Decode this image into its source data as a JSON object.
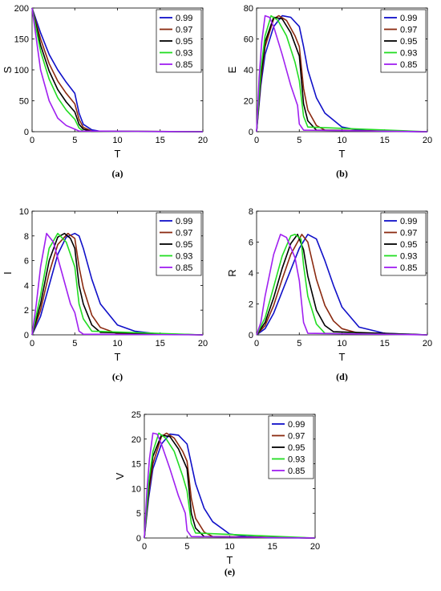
{
  "chart_data": [
    {
      "type": "line",
      "caption": "(a)",
      "xlabel": "T",
      "ylabel": "S",
      "xlim": [
        0,
        20
      ],
      "ylim": [
        0,
        200
      ],
      "xticks": [
        "0",
        "5",
        "10",
        "15",
        "20"
      ],
      "yticks": [
        "0",
        "50",
        "100",
        "150",
        "200"
      ],
      "legend_position": "top-right",
      "series": [
        {
          "name": "0.99",
          "color": "#1010c8",
          "x": [
            0,
            1,
            2,
            3,
            4,
            5,
            5.5,
            6,
            7,
            8,
            20
          ],
          "y": [
            200,
            160,
            125,
            100,
            80,
            62,
            30,
            12,
            3,
            0.5,
            0
          ]
        },
        {
          "name": "0.97",
          "color": "#8b2a10",
          "x": [
            0,
            1,
            2,
            3,
            4,
            5,
            5.5,
            6,
            7,
            20
          ],
          "y": [
            200,
            150,
            110,
            82,
            62,
            45,
            20,
            7,
            1,
            0
          ]
        },
        {
          "name": "0.95",
          "color": "#000000",
          "x": [
            0,
            1,
            2,
            3,
            4,
            5,
            5.5,
            6,
            7,
            20
          ],
          "y": [
            200,
            140,
            98,
            68,
            48,
            32,
            12,
            4,
            0.5,
            0
          ]
        },
        {
          "name": "0.93",
          "color": "#22dd22",
          "x": [
            0,
            1,
            2,
            3,
            4,
            5,
            5.5,
            6,
            20
          ],
          "y": [
            200,
            130,
            85,
            55,
            35,
            20,
            6,
            1,
            0
          ]
        },
        {
          "name": "0.85",
          "color": "#a020f0",
          "x": [
            0,
            1,
            2,
            3,
            4,
            5,
            5.5,
            20
          ],
          "y": [
            200,
            100,
            50,
            22,
            10,
            4,
            1,
            0
          ]
        }
      ]
    },
    {
      "type": "line",
      "caption": "(b)",
      "xlabel": "T",
      "ylabel": "E",
      "xlim": [
        0,
        20
      ],
      "ylim": [
        0,
        80
      ],
      "xticks": [
        "0",
        "5",
        "10",
        "15",
        "20"
      ],
      "yticks": [
        "0",
        "20",
        "40",
        "60",
        "80"
      ],
      "legend_position": "top-right",
      "series": [
        {
          "name": "0.99",
          "color": "#1010c8",
          "x": [
            0,
            0.5,
            1,
            2,
            3,
            4,
            5,
            5.5,
            6,
            7,
            8,
            10,
            12,
            15,
            20
          ],
          "y": [
            0,
            30,
            50,
            68,
            75,
            74,
            68,
            55,
            40,
            22,
            12,
            3,
            1,
            0.2,
            0
          ]
        },
        {
          "name": "0.97",
          "color": "#8b2a10",
          "x": [
            0,
            0.5,
            1,
            2,
            2.6,
            3.5,
            4.5,
            5,
            5.5,
            6,
            7,
            8,
            20
          ],
          "y": [
            0,
            33,
            55,
            73,
            75,
            72,
            62,
            55,
            28,
            14,
            4,
            1,
            0
          ]
        },
        {
          "name": "0.95",
          "color": "#000000",
          "x": [
            0,
            0.5,
            1,
            2,
            3,
            4,
            5,
            5.5,
            6,
            7,
            20
          ],
          "y": [
            0,
            36,
            58,
            74,
            73,
            64,
            49,
            18,
            7,
            1,
            0
          ]
        },
        {
          "name": "0.93",
          "color": "#22dd22",
          "x": [
            0,
            0.5,
            1,
            1.7,
            2.5,
            3.5,
            4.5,
            5,
            5.5,
            6,
            20
          ],
          "y": [
            0,
            40,
            62,
            75,
            72,
            62,
            45,
            33,
            10,
            3,
            0
          ]
        },
        {
          "name": "0.85",
          "color": "#a020f0",
          "x": [
            0,
            0.3,
            0.6,
            1,
            1.5,
            2,
            3,
            4,
            4.8,
            5,
            5.5,
            20
          ],
          "y": [
            0,
            35,
            58,
            75,
            74,
            68,
            50,
            30,
            17,
            5,
            1,
            0
          ]
        }
      ]
    },
    {
      "type": "line",
      "caption": "(c)",
      "xlabel": "T",
      "ylabel": "I",
      "xlim": [
        0,
        20
      ],
      "ylim": [
        0,
        10
      ],
      "xticks": [
        "0",
        "5",
        "10",
        "15",
        "20"
      ],
      "yticks": [
        "0",
        "2",
        "4",
        "6",
        "8",
        "10"
      ],
      "legend_position": "top-right",
      "series": [
        {
          "name": "0.99",
          "color": "#1010c8",
          "x": [
            0,
            1,
            2,
            3,
            4,
            5,
            5.5,
            6,
            7,
            8,
            10,
            12,
            15,
            20
          ],
          "y": [
            0,
            1.5,
            4,
            6.5,
            7.9,
            8.2,
            8,
            7,
            4.5,
            2.5,
            0.8,
            0.3,
            0.05,
            0
          ]
        },
        {
          "name": "0.97",
          "color": "#8b2a10",
          "x": [
            0,
            1,
            2,
            3,
            4.2,
            5,
            5.5,
            6,
            7,
            8,
            10,
            20
          ],
          "y": [
            0,
            2,
            5,
            7.3,
            8.2,
            7.8,
            5.5,
            3.8,
            1.6,
            0.6,
            0.1,
            0
          ]
        },
        {
          "name": "0.95",
          "color": "#000000",
          "x": [
            0,
            1,
            2,
            3,
            3.8,
            4.5,
            5,
            5.5,
            6,
            7,
            8,
            20
          ],
          "y": [
            0,
            2.5,
            6,
            7.9,
            8.2,
            7.8,
            7,
            4,
            2.5,
            0.8,
            0.2,
            0
          ]
        },
        {
          "name": "0.93",
          "color": "#22dd22",
          "x": [
            0,
            1,
            2,
            3,
            4,
            5,
            5.5,
            6,
            7,
            20
          ],
          "y": [
            0,
            3.2,
            7,
            8.2,
            7.5,
            5.5,
            2.5,
            1.3,
            0.3,
            0
          ]
        },
        {
          "name": "0.85",
          "color": "#a020f0",
          "x": [
            0,
            0.5,
            1,
            1.7,
            2.5,
            3.5,
            4.5,
            5,
            5.5,
            6,
            20
          ],
          "y": [
            0,
            2.5,
            5.5,
            8.2,
            7.5,
            5,
            2.5,
            1.8,
            0.3,
            0.05,
            0
          ]
        }
      ]
    },
    {
      "type": "line",
      "caption": "(d)",
      "xlabel": "T",
      "ylabel": "R",
      "xlim": [
        0,
        20
      ],
      "ylim": [
        0,
        8
      ],
      "xticks": [
        "0",
        "5",
        "10",
        "15",
        "20"
      ],
      "yticks": [
        "0",
        "2",
        "4",
        "6",
        "8"
      ],
      "legend_position": "top-right",
      "series": [
        {
          "name": "0.99",
          "color": "#1010c8",
          "x": [
            0,
            1,
            2,
            3,
            4,
            5,
            6,
            7,
            8,
            9,
            10,
            12,
            15,
            20
          ],
          "y": [
            0,
            0.4,
            1.4,
            2.8,
            4.2,
            5.6,
            6.5,
            6.2,
            4.8,
            3.2,
            1.8,
            0.5,
            0.1,
            0
          ]
        },
        {
          "name": "0.97",
          "color": "#8b2a10",
          "x": [
            0,
            1,
            2,
            3,
            4,
            5.3,
            6,
            7,
            8,
            9,
            10,
            12,
            20
          ],
          "y": [
            0,
            0.6,
            1.9,
            3.6,
            5.2,
            6.5,
            6,
            3.6,
            1.9,
            0.9,
            0.4,
            0.1,
            0
          ]
        },
        {
          "name": "0.95",
          "color": "#000000",
          "x": [
            0,
            1,
            2,
            3,
            4,
            4.8,
            5.5,
            6,
            7,
            8,
            9,
            20
          ],
          "y": [
            0,
            0.8,
            2.4,
            4.3,
            5.9,
            6.5,
            5.5,
            3.8,
            1.6,
            0.6,
            0.2,
            0
          ]
        },
        {
          "name": "0.93",
          "color": "#22dd22",
          "x": [
            0,
            1,
            2,
            3,
            4,
            4.5,
            5.2,
            5.5,
            6,
            7,
            8,
            20
          ],
          "y": [
            0,
            1.1,
            3.1,
            5.1,
            6.4,
            6.5,
            6.2,
            4.5,
            2.5,
            0.7,
            0.1,
            0
          ]
        },
        {
          "name": "0.85",
          "color": "#a020f0",
          "x": [
            0,
            0.5,
            1,
            2,
            2.8,
            3.5,
            4.5,
            5,
            5.5,
            6,
            20
          ],
          "y": [
            0,
            0.8,
            2.5,
            5.2,
            6.5,
            6.3,
            5,
            3.5,
            0.8,
            0.1,
            0
          ]
        }
      ]
    },
    {
      "type": "line",
      "caption": "(e)",
      "xlabel": "T",
      "ylabel": "V",
      "xlim": [
        0,
        20
      ],
      "ylim": [
        0,
        25
      ],
      "xticks": [
        "0",
        "5",
        "10",
        "15",
        "20"
      ],
      "yticks": [
        "0",
        "5",
        "10",
        "15",
        "20",
        "25"
      ],
      "legend_position": "top-right",
      "series": [
        {
          "name": "0.99",
          "color": "#1010c8",
          "x": [
            0,
            0.5,
            1,
            2,
            3,
            4,
            5,
            5.5,
            6,
            7,
            8,
            10,
            12,
            15,
            20
          ],
          "y": [
            0,
            8,
            14,
            19,
            21,
            20.8,
            19,
            15,
            11,
            6,
            3.3,
            0.8,
            0.3,
            0.05,
            0
          ]
        },
        {
          "name": "0.97",
          "color": "#8b2a10",
          "x": [
            0,
            0.5,
            1,
            2,
            2.6,
            3.5,
            4.5,
            5,
            5.5,
            6,
            7,
            8,
            20
          ],
          "y": [
            0,
            9,
            15,
            20.5,
            21.2,
            20.2,
            17.5,
            15.5,
            8,
            4,
            1.2,
            0.3,
            0
          ]
        },
        {
          "name": "0.95",
          "color": "#000000",
          "x": [
            0,
            0.5,
            1,
            2,
            3,
            4,
            5,
            5.5,
            6,
            7,
            20
          ],
          "y": [
            0,
            10,
            16.5,
            20.8,
            20.5,
            18,
            14,
            5,
            2,
            0.3,
            0
          ]
        },
        {
          "name": "0.93",
          "color": "#22dd22",
          "x": [
            0,
            0.5,
            1,
            1.7,
            2.5,
            3.5,
            4.5,
            5,
            5.5,
            6,
            20
          ],
          "y": [
            0,
            11,
            17.5,
            21.2,
            20.2,
            17.5,
            12.5,
            9.5,
            3,
            1,
            0
          ]
        },
        {
          "name": "0.85",
          "color": "#a020f0",
          "x": [
            0,
            0.3,
            0.6,
            1,
            1.5,
            2,
            3,
            4,
            4.8,
            5,
            5.5,
            20
          ],
          "y": [
            0,
            9.5,
            16,
            21.2,
            21,
            19,
            14,
            8.5,
            5,
            1.5,
            0.3,
            0
          ]
        }
      ]
    }
  ]
}
